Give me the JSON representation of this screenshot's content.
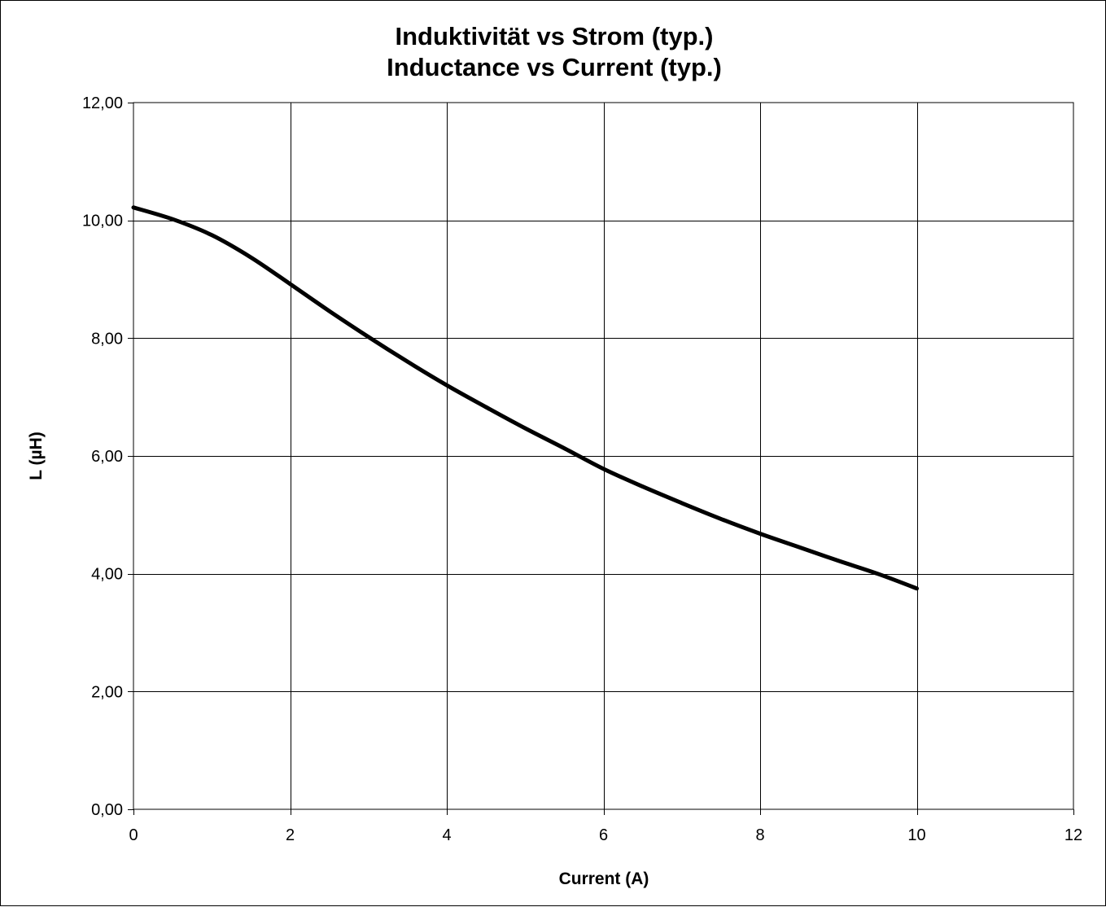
{
  "chart_data": {
    "type": "line",
    "title_lines": [
      "Induktivität vs Strom (typ.)",
      "Inductance vs Current (typ.)"
    ],
    "xlabel": "Current (A)",
    "ylabel": "L (µH)",
    "xlim": [
      0,
      12
    ],
    "ylim": [
      0,
      12
    ],
    "x_ticks": [
      0,
      2,
      4,
      6,
      8,
      10,
      12
    ],
    "x_tick_labels": [
      "0",
      "2",
      "4",
      "6",
      "8",
      "10",
      "12"
    ],
    "y_ticks": [
      0,
      2,
      4,
      6,
      8,
      10,
      12
    ],
    "y_tick_labels": [
      "0,00",
      "2,00",
      "4,00",
      "6,00",
      "8,00",
      "10,00",
      "12,00"
    ],
    "grid": true,
    "legend": "none",
    "series_color": "#000000",
    "series": [
      {
        "x": [
          0,
          0.5,
          1,
          1.5,
          2,
          2.5,
          3,
          3.5,
          4,
          4.5,
          5,
          5.5,
          6,
          6.5,
          7,
          7.5,
          8,
          8.5,
          9,
          9.5,
          10
        ],
        "values": [
          10.22,
          10.02,
          9.75,
          9.37,
          8.92,
          8.46,
          8.02,
          7.6,
          7.2,
          6.83,
          6.47,
          6.13,
          5.78,
          5.48,
          5.2,
          4.93,
          4.68,
          4.45,
          4.22,
          4.0,
          3.75
        ]
      }
    ]
  }
}
